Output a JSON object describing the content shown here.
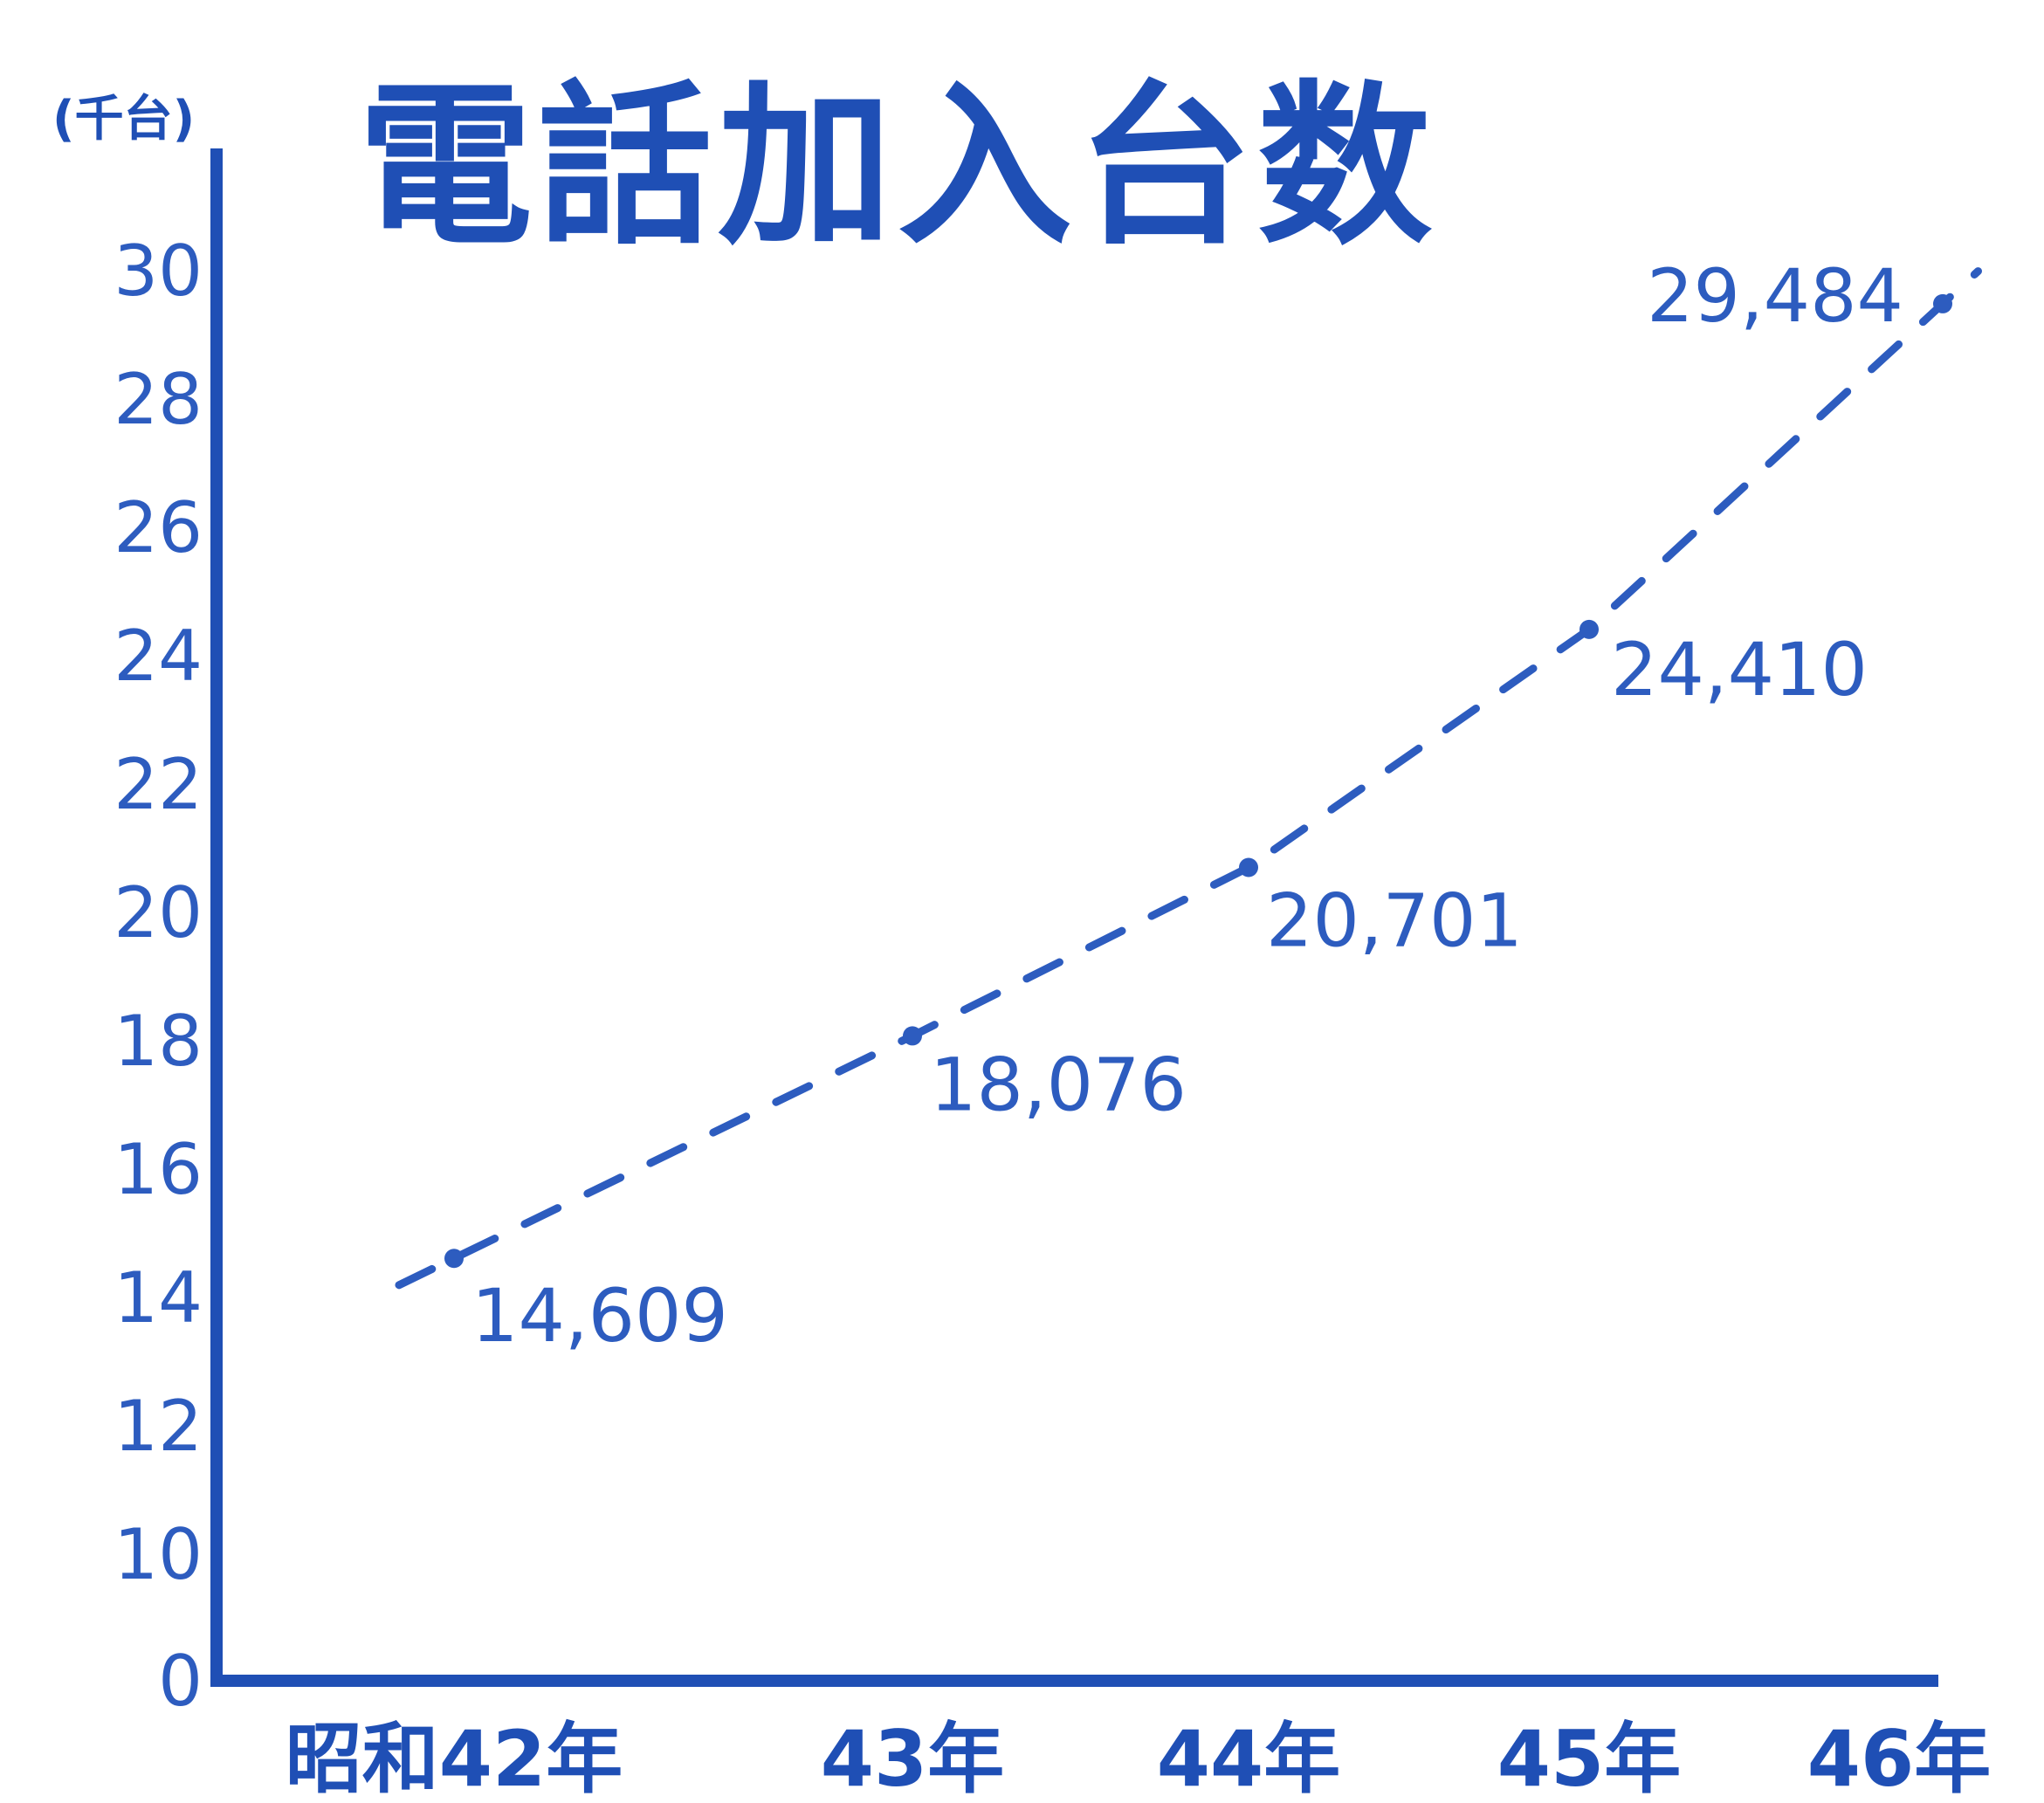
{
  "chart_data": {
    "type": "line",
    "title": "電話加入台数",
    "ylabel": "(千台)",
    "xlabel": "",
    "categories": [
      "昭和42年",
      "43年",
      "44年",
      "45年",
      "46年"
    ],
    "series": [
      {
        "values": [
          14.609,
          18.076,
          20.701,
          24.41,
          29.484
        ],
        "point_labels": [
          "14,609",
          "18,076",
          "20,701",
          "24,410",
          "29,484"
        ]
      }
    ],
    "ylim": [
      0,
      30
    ],
    "y_ticks": [
      "0",
      "10",
      "12",
      "14",
      "16",
      "18",
      "20",
      "22",
      "24",
      "26",
      "28",
      "30"
    ],
    "y_tick_values": [
      0,
      10,
      12,
      14,
      16,
      18,
      20,
      22,
      24,
      26,
      28,
      30
    ],
    "line_style": "dashed",
    "grid": false,
    "legend": "none",
    "colors": {
      "axis": "#1f4fb5",
      "line": "#2d5cbf",
      "text": "#2d5cbf",
      "background": "#ffffff"
    }
  }
}
